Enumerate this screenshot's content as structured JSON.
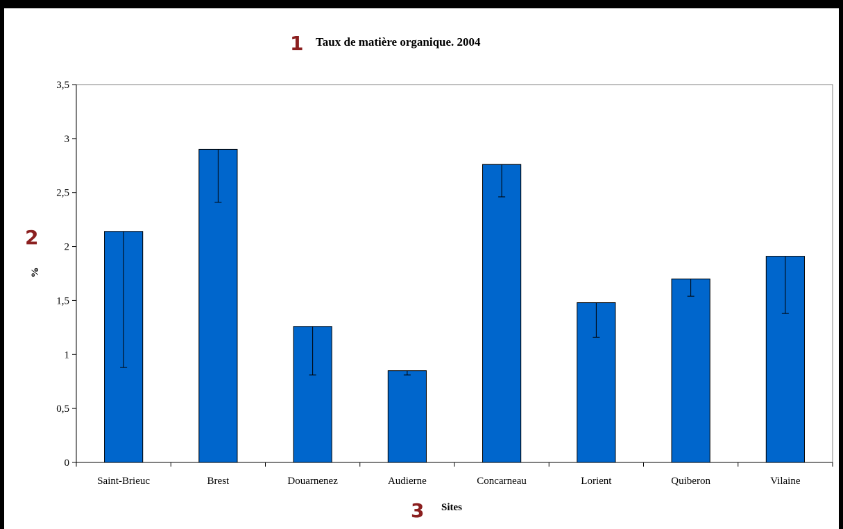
{
  "markers": {
    "title": "1",
    "yaxis": "2",
    "xaxis": "3"
  },
  "colors": {
    "bar": "#0066cc",
    "bar_stroke": "#000000",
    "marker": "#8b1f1f",
    "plot_border": "#808080"
  },
  "chart_data": {
    "type": "bar",
    "title": "Taux de matière organique. 2004",
    "xlabel": "Sites",
    "ylabel": "%",
    "ylim": [
      0,
      3.5
    ],
    "yticks": [
      0,
      0.5,
      1,
      1.5,
      2,
      2.5,
      3,
      3.5
    ],
    "ytick_labels": [
      "0",
      "0,5",
      "1",
      "1,5",
      "2",
      "2,5",
      "3",
      "3,5"
    ],
    "grid": false,
    "legend": "none",
    "categories": [
      "Saint-Brieuc",
      "Brest",
      "Douarnenez",
      "Audierne",
      "Concarneau",
      "Lorient",
      "Quiberon",
      "Vilaine"
    ],
    "values": [
      2.14,
      2.9,
      1.26,
      0.85,
      2.76,
      1.48,
      1.7,
      1.91
    ],
    "error_lower": [
      0.88,
      2.41,
      0.81,
      0.81,
      2.46,
      1.16,
      1.54,
      1.38
    ]
  }
}
